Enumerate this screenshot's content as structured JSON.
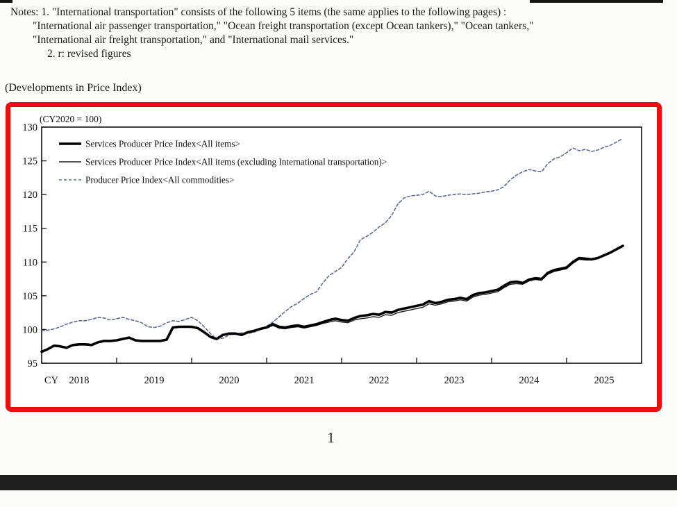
{
  "page": {
    "background": "#fbfbfa",
    "bottom_bar_color": "#1f1f1f",
    "page_number": "1"
  },
  "notes": {
    "line1": "Notes: 1. \"International transportation\" consists of the following 5 items (the same applies to the following pages) :",
    "line2": "\"International air passenger transportation,\" \"Ocean freight transportation (except Ocean tankers),\" \"Ocean tankers,\"",
    "line3": "\"International air freight transportation,\" and \"International mail services.\"",
    "line4": "2. r: revised figures"
  },
  "section_title": "(Developments in Price Index)",
  "chart_data": {
    "type": "line",
    "title": "(CY2020 = 100)",
    "highlight_border_color": "#e8100c",
    "x_axis": {
      "prefix_label": "CY",
      "year_labels": [
        "2018",
        "2019",
        "2020",
        "2021",
        "2022",
        "2023",
        "2024",
        "2025"
      ],
      "start_year": 2018,
      "frequency": "monthly",
      "months_span": 96
    },
    "y_axis": {
      "min": 95,
      "max": 130,
      "ticks": [
        95,
        100,
        105,
        110,
        115,
        120,
        125,
        130
      ]
    },
    "grid": false,
    "legend_position": "top-left-inside",
    "legend": [
      "Services Producer Price Index<All items>",
      "Services Producer Price Index<All items (excluding International transportation)>",
      "Producer Price Index<All commodities>"
    ],
    "series": [
      {
        "name": "Services Producer Price Index<All items>",
        "style": "thick-solid",
        "color": "#000000",
        "values": [
          96.7,
          97.1,
          97.6,
          97.5,
          97.3,
          97.7,
          97.8,
          97.8,
          97.7,
          98.1,
          98.3,
          98.3,
          98.4,
          98.6,
          98.8,
          98.4,
          98.3,
          98.3,
          98.3,
          98.3,
          98.5,
          100.3,
          100.4,
          100.4,
          100.4,
          100.2,
          99.6,
          98.9,
          98.6,
          99.2,
          99.4,
          99.4,
          99.2,
          99.6,
          99.8,
          100.1,
          100.3,
          100.8,
          100.4,
          100.3,
          100.5,
          100.6,
          100.4,
          100.6,
          100.8,
          101.1,
          101.4,
          101.6,
          101.4,
          101.3,
          101.7,
          102.0,
          102.1,
          102.3,
          102.2,
          102.6,
          102.5,
          102.9,
          103.1,
          103.3,
          103.5,
          103.7,
          104.2,
          103.9,
          104.1,
          104.4,
          104.5,
          104.7,
          104.5,
          105.1,
          105.4,
          105.5,
          105.7,
          105.9,
          106.5,
          107.0,
          107.1,
          106.9,
          107.4,
          107.6,
          107.5,
          108.4,
          108.8,
          109.0,
          109.2,
          110.0,
          110.6,
          110.5,
          110.4,
          110.6,
          111.0,
          111.4,
          111.9,
          112.4
        ]
      },
      {
        "name": "Services Producer Price Index<All items (excluding International transportation)>",
        "style": "thin-solid",
        "color": "#1a1a1a",
        "values": [
          96.7,
          97.1,
          97.6,
          97.5,
          97.3,
          97.7,
          97.8,
          97.8,
          97.7,
          98.1,
          98.3,
          98.3,
          98.4,
          98.6,
          98.8,
          98.4,
          98.3,
          98.3,
          98.3,
          98.3,
          98.5,
          100.3,
          100.4,
          100.4,
          100.4,
          100.2,
          99.6,
          98.9,
          98.6,
          99.2,
          99.4,
          99.4,
          99.2,
          99.6,
          99.8,
          100.1,
          100.2,
          100.6,
          100.2,
          100.1,
          100.3,
          100.4,
          100.2,
          100.4,
          100.6,
          100.9,
          101.1,
          101.3,
          101.1,
          101.0,
          101.4,
          101.6,
          101.7,
          101.9,
          101.8,
          102.2,
          102.1,
          102.5,
          102.7,
          102.9,
          103.1,
          103.3,
          103.8,
          103.6,
          103.8,
          104.1,
          104.2,
          104.4,
          104.2,
          104.8,
          105.1,
          105.2,
          105.4,
          105.6,
          106.2,
          106.7,
          106.8,
          106.7,
          107.2,
          107.4,
          107.3,
          108.2,
          108.6,
          108.8,
          109.0,
          109.8,
          110.4,
          110.3,
          110.3,
          110.5,
          110.9,
          111.3,
          111.8,
          112.3
        ]
      },
      {
        "name": "Producer Price Index<All commodities>",
        "style": "dashed",
        "color": "#5b6b96",
        "values": [
          99.8,
          99.9,
          100.1,
          100.4,
          100.8,
          101.1,
          101.3,
          101.3,
          101.5,
          101.8,
          101.7,
          101.4,
          101.6,
          101.8,
          101.5,
          101.3,
          101.0,
          100.4,
          100.3,
          100.5,
          101.0,
          101.3,
          101.2,
          101.5,
          101.8,
          101.3,
          100.4,
          99.4,
          98.6,
          98.7,
          99.2,
          99.4,
          99.5,
          99.4,
          99.6,
          100.1,
          100.5,
          101.1,
          101.9,
          102.7,
          103.4,
          103.9,
          104.6,
          105.2,
          105.6,
          106.9,
          108.0,
          108.6,
          109.2,
          110.5,
          111.5,
          113.3,
          113.8,
          114.4,
          115.2,
          115.8,
          116.9,
          118.6,
          119.5,
          119.8,
          119.9,
          120.0,
          120.5,
          119.8,
          119.7,
          119.9,
          120.0,
          120.1,
          120.0,
          120.1,
          120.2,
          120.4,
          120.5,
          120.7,
          121.2,
          122.2,
          122.9,
          123.4,
          123.7,
          123.5,
          123.4,
          124.6,
          125.3,
          125.6,
          126.2,
          126.9,
          126.5,
          126.7,
          126.4,
          126.6,
          127.0,
          127.3,
          127.8,
          128.3
        ]
      }
    ]
  }
}
